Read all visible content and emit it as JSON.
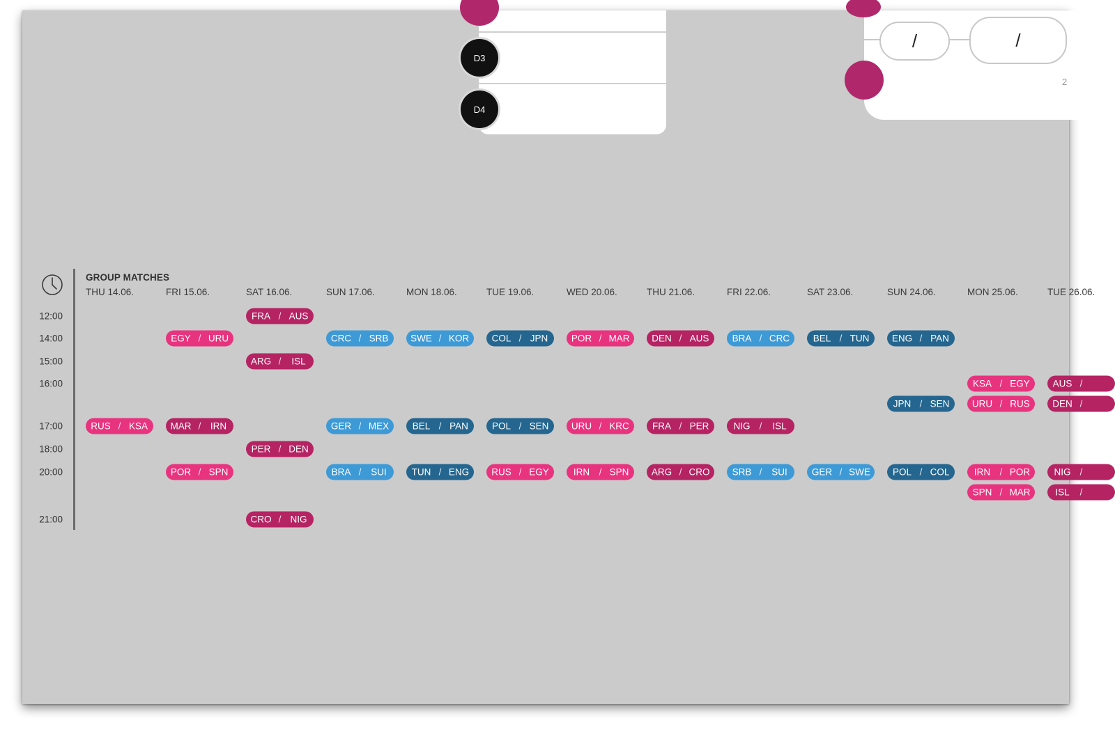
{
  "bracket": {
    "group_d": {
      "seeds": [
        "D3",
        "D4"
      ]
    },
    "knockout": {
      "score_separator": "/",
      "small_label": "2"
    }
  },
  "schedule": {
    "title": "GROUP MATCHES",
    "clock_icon": "clock-icon",
    "days": [
      "THU 14.06.",
      "FRI 15.06.",
      "SAT 16.06.",
      "SUN 17.06.",
      "MON 18.06.",
      "TUE 19.06.",
      "WED 20.06.",
      "THU 21.06.",
      "FRI 22.06.",
      "SAT 23.06.",
      "SUN 24.06.",
      "MON 25.06.",
      "TUE 26.06."
    ],
    "times": [
      "12:00",
      "14:00",
      "15:00",
      "16:00",
      "17:00",
      "18:00",
      "20:00",
      "21:00"
    ],
    "colors": {
      "pink": "#e8337f",
      "magenta": "#b52363",
      "sky": "#3d9ad6",
      "navy": "#24668f"
    },
    "matches": [
      {
        "day": 0,
        "time": "17:00",
        "home": "RUS",
        "away": "KSA",
        "color": "pink"
      },
      {
        "day": 1,
        "time": "14:00",
        "home": "EGY",
        "away": "URU",
        "color": "pink"
      },
      {
        "day": 1,
        "time": "17:00",
        "home": "MAR",
        "away": "IRN",
        "color": "magenta"
      },
      {
        "day": 1,
        "time": "20:00",
        "home": "POR",
        "away": "SPN",
        "color": "pink"
      },
      {
        "day": 2,
        "time": "12:00",
        "home": "FRA",
        "away": "AUS",
        "color": "magenta"
      },
      {
        "day": 2,
        "time": "15:00",
        "home": "ARG",
        "away": "ISL",
        "color": "magenta"
      },
      {
        "day": 2,
        "time": "18:00",
        "home": "PER",
        "away": "DEN",
        "color": "magenta"
      },
      {
        "day": 2,
        "time": "21:00",
        "home": "CRO",
        "away": "NIG",
        "color": "magenta"
      },
      {
        "day": 3,
        "time": "14:00",
        "home": "CRC",
        "away": "SRB",
        "color": "sky"
      },
      {
        "day": 3,
        "time": "17:00",
        "home": "GER",
        "away": "MEX",
        "color": "sky"
      },
      {
        "day": 3,
        "time": "20:00",
        "home": "BRA",
        "away": "SUI",
        "color": "sky"
      },
      {
        "day": 4,
        "time": "14:00",
        "home": "SWE",
        "away": "KOR",
        "color": "sky"
      },
      {
        "day": 4,
        "time": "17:00",
        "home": "BEL",
        "away": "PAN",
        "color": "navy"
      },
      {
        "day": 4,
        "time": "20:00",
        "home": "TUN",
        "away": "ENG",
        "color": "navy"
      },
      {
        "day": 5,
        "time": "14:00",
        "home": "COL",
        "away": "JPN",
        "color": "navy"
      },
      {
        "day": 5,
        "time": "17:00",
        "home": "POL",
        "away": "SEN",
        "color": "navy"
      },
      {
        "day": 5,
        "time": "20:00",
        "home": "RUS",
        "away": "EGY",
        "color": "pink"
      },
      {
        "day": 6,
        "time": "14:00",
        "home": "POR",
        "away": "MAR",
        "color": "pink"
      },
      {
        "day": 6,
        "time": "17:00",
        "home": "URU",
        "away": "KRC",
        "color": "pink"
      },
      {
        "day": 6,
        "time": "20:00",
        "home": "IRN",
        "away": "SPN",
        "color": "pink"
      },
      {
        "day": 7,
        "time": "14:00",
        "home": "DEN",
        "away": "AUS",
        "color": "magenta"
      },
      {
        "day": 7,
        "time": "17:00",
        "home": "FRA",
        "away": "PER",
        "color": "magenta"
      },
      {
        "day": 7,
        "time": "20:00",
        "home": "ARG",
        "away": "CRO",
        "color": "magenta"
      },
      {
        "day": 8,
        "time": "14:00",
        "home": "BRA",
        "away": "CRC",
        "color": "sky"
      },
      {
        "day": 8,
        "time": "17:00",
        "home": "NIG",
        "away": "ISL",
        "color": "magenta"
      },
      {
        "day": 8,
        "time": "20:00",
        "home": "SRB",
        "away": "SUI",
        "color": "sky"
      },
      {
        "day": 9,
        "time": "14:00",
        "home": "BEL",
        "away": "TUN",
        "color": "navy"
      },
      {
        "day": 9,
        "time": "20:00",
        "home": "GER",
        "away": "SWE",
        "color": "sky"
      },
      {
        "day": 10,
        "time": "14:00",
        "home": "ENG",
        "away": "PAN",
        "color": "navy"
      },
      {
        "day": 10,
        "time": "16:00",
        "slot": 1,
        "home": "JPN",
        "away": "SEN",
        "color": "navy"
      },
      {
        "day": 10,
        "time": "20:00",
        "home": "POL",
        "away": "COL",
        "color": "navy"
      },
      {
        "day": 11,
        "time": "16:00",
        "slot": 0,
        "home": "KSA",
        "away": "EGY",
        "color": "pink"
      },
      {
        "day": 11,
        "time": "16:00",
        "slot": 1,
        "home": "URU",
        "away": "RUS",
        "color": "pink"
      },
      {
        "day": 11,
        "time": "20:00",
        "slot": 0,
        "home": "IRN",
        "away": "POR",
        "color": "pink"
      },
      {
        "day": 11,
        "time": "20:00",
        "slot": 1,
        "home": "SPN",
        "away": "MAR",
        "color": "pink"
      },
      {
        "day": 12,
        "time": "16:00",
        "slot": 0,
        "home": "AUS",
        "away": "",
        "color": "magenta"
      },
      {
        "day": 12,
        "time": "16:00",
        "slot": 1,
        "home": "DEN",
        "away": "",
        "color": "magenta"
      },
      {
        "day": 12,
        "time": "20:00",
        "slot": 0,
        "home": "NIG",
        "away": "",
        "color": "magenta"
      },
      {
        "day": 12,
        "time": "20:00",
        "slot": 1,
        "home": "ISL",
        "away": "",
        "color": "magenta"
      }
    ]
  }
}
